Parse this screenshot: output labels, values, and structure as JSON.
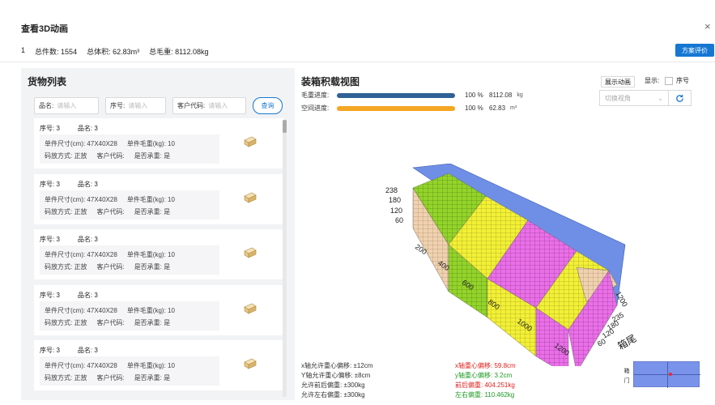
{
  "dialog": {
    "title": "查看3D动画",
    "close_icon": "×"
  },
  "summary": {
    "index": "1",
    "total_count_label": "总件数:",
    "total_count": "1554",
    "total_volume_label": "总体积:",
    "total_volume": "62.83m³",
    "total_weight_label": "总毛重:",
    "total_weight": "8112.08kg"
  },
  "plan_button": "方案评价",
  "cargo_panel": {
    "title": "货物列表",
    "search": [
      {
        "label": "品名:",
        "placeholder": "请输入"
      },
      {
        "label": "序号:",
        "placeholder": "请输入"
      },
      {
        "label": "客户代码:",
        "placeholder": "请输入"
      }
    ],
    "query_button": "查询",
    "items": [
      {
        "seq": "序号: 3",
        "name": "品名: 3",
        "size": "单件尺寸(cm): 47X40X28",
        "weight": "单件毛重(kg): 10",
        "stack": "码放方式: 正放",
        "customer": "客户代码:",
        "bearing": "是否承重: 是"
      },
      {
        "seq": "序号: 3",
        "name": "品名: 3",
        "size": "单件尺寸(cm): 47X40X28",
        "weight": "单件毛重(kg): 10",
        "stack": "码放方式: 正放",
        "customer": "客户代码:",
        "bearing": "是否承重: 是"
      },
      {
        "seq": "序号: 3",
        "name": "品名: 3",
        "size": "单件尺寸(cm): 47X40X28",
        "weight": "单件毛重(kg): 10",
        "stack": "码放方式: 正放",
        "customer": "客户代码:",
        "bearing": "是否承重: 是"
      },
      {
        "seq": "序号: 3",
        "name": "品名: 3",
        "size": "单件尺寸(cm): 47X40X28",
        "weight": "单件毛重(kg): 10",
        "stack": "码放方式: 正放",
        "customer": "客户代码:",
        "bearing": "是否承重: 是"
      },
      {
        "seq": "序号: 3",
        "name": "品名: 3",
        "size": "单件尺寸(cm): 47X40X28",
        "weight": "单件毛重(kg): 10",
        "stack": "码放方式: 正放",
        "customer": "客户代码:",
        "bearing": "是否承重: 是"
      }
    ]
  },
  "load_view": {
    "title": "装箱积载视图",
    "weight_progress": {
      "label": "毛重进度:",
      "percent": "100",
      "pct_unit": "%",
      "value": "8112.08",
      "unit": "kg",
      "fill": 1.0,
      "color": "#2f6196"
    },
    "space_progress": {
      "label": "空间进度:",
      "percent": "100",
      "pct_unit": "%",
      "value": "62.83",
      "unit": "m³",
      "fill": 1.0,
      "color": "#f5a623"
    },
    "show_animation_button": "展示动画",
    "display_label": "显示:",
    "seq_checkbox_label": "序号",
    "view_select_placeholder": "切换视角",
    "refresh_icon": "refresh-icon",
    "axis_labels": {
      "height_ticks": [
        "238",
        "180",
        "120",
        "60"
      ],
      "length_ticks": [
        "200",
        "400",
        "600",
        "800",
        "1000",
        "1200"
      ],
      "width_ticks": [
        "1200",
        "235",
        "180",
        "120",
        "60"
      ],
      "box_label": "箱尾"
    },
    "stats_left": [
      "x轴允许重心偏移: ±12cm",
      "Y轴允许重心偏移: ±8cm",
      "允许前后偏重: ±300kg",
      "允许左右偏重: ±300kg"
    ],
    "stats_right": [
      {
        "text": "x轴重心偏移: 59.8cm",
        "color": "red"
      },
      {
        "text": "y轴重心偏移: 3.2cm",
        "color": "green"
      },
      {
        "text": "前后偏重: 404.251kg",
        "color": "red"
      },
      {
        "text": "左右偏重: 110.462kg",
        "color": "green"
      }
    ],
    "mini_map_label": "箱门"
  }
}
